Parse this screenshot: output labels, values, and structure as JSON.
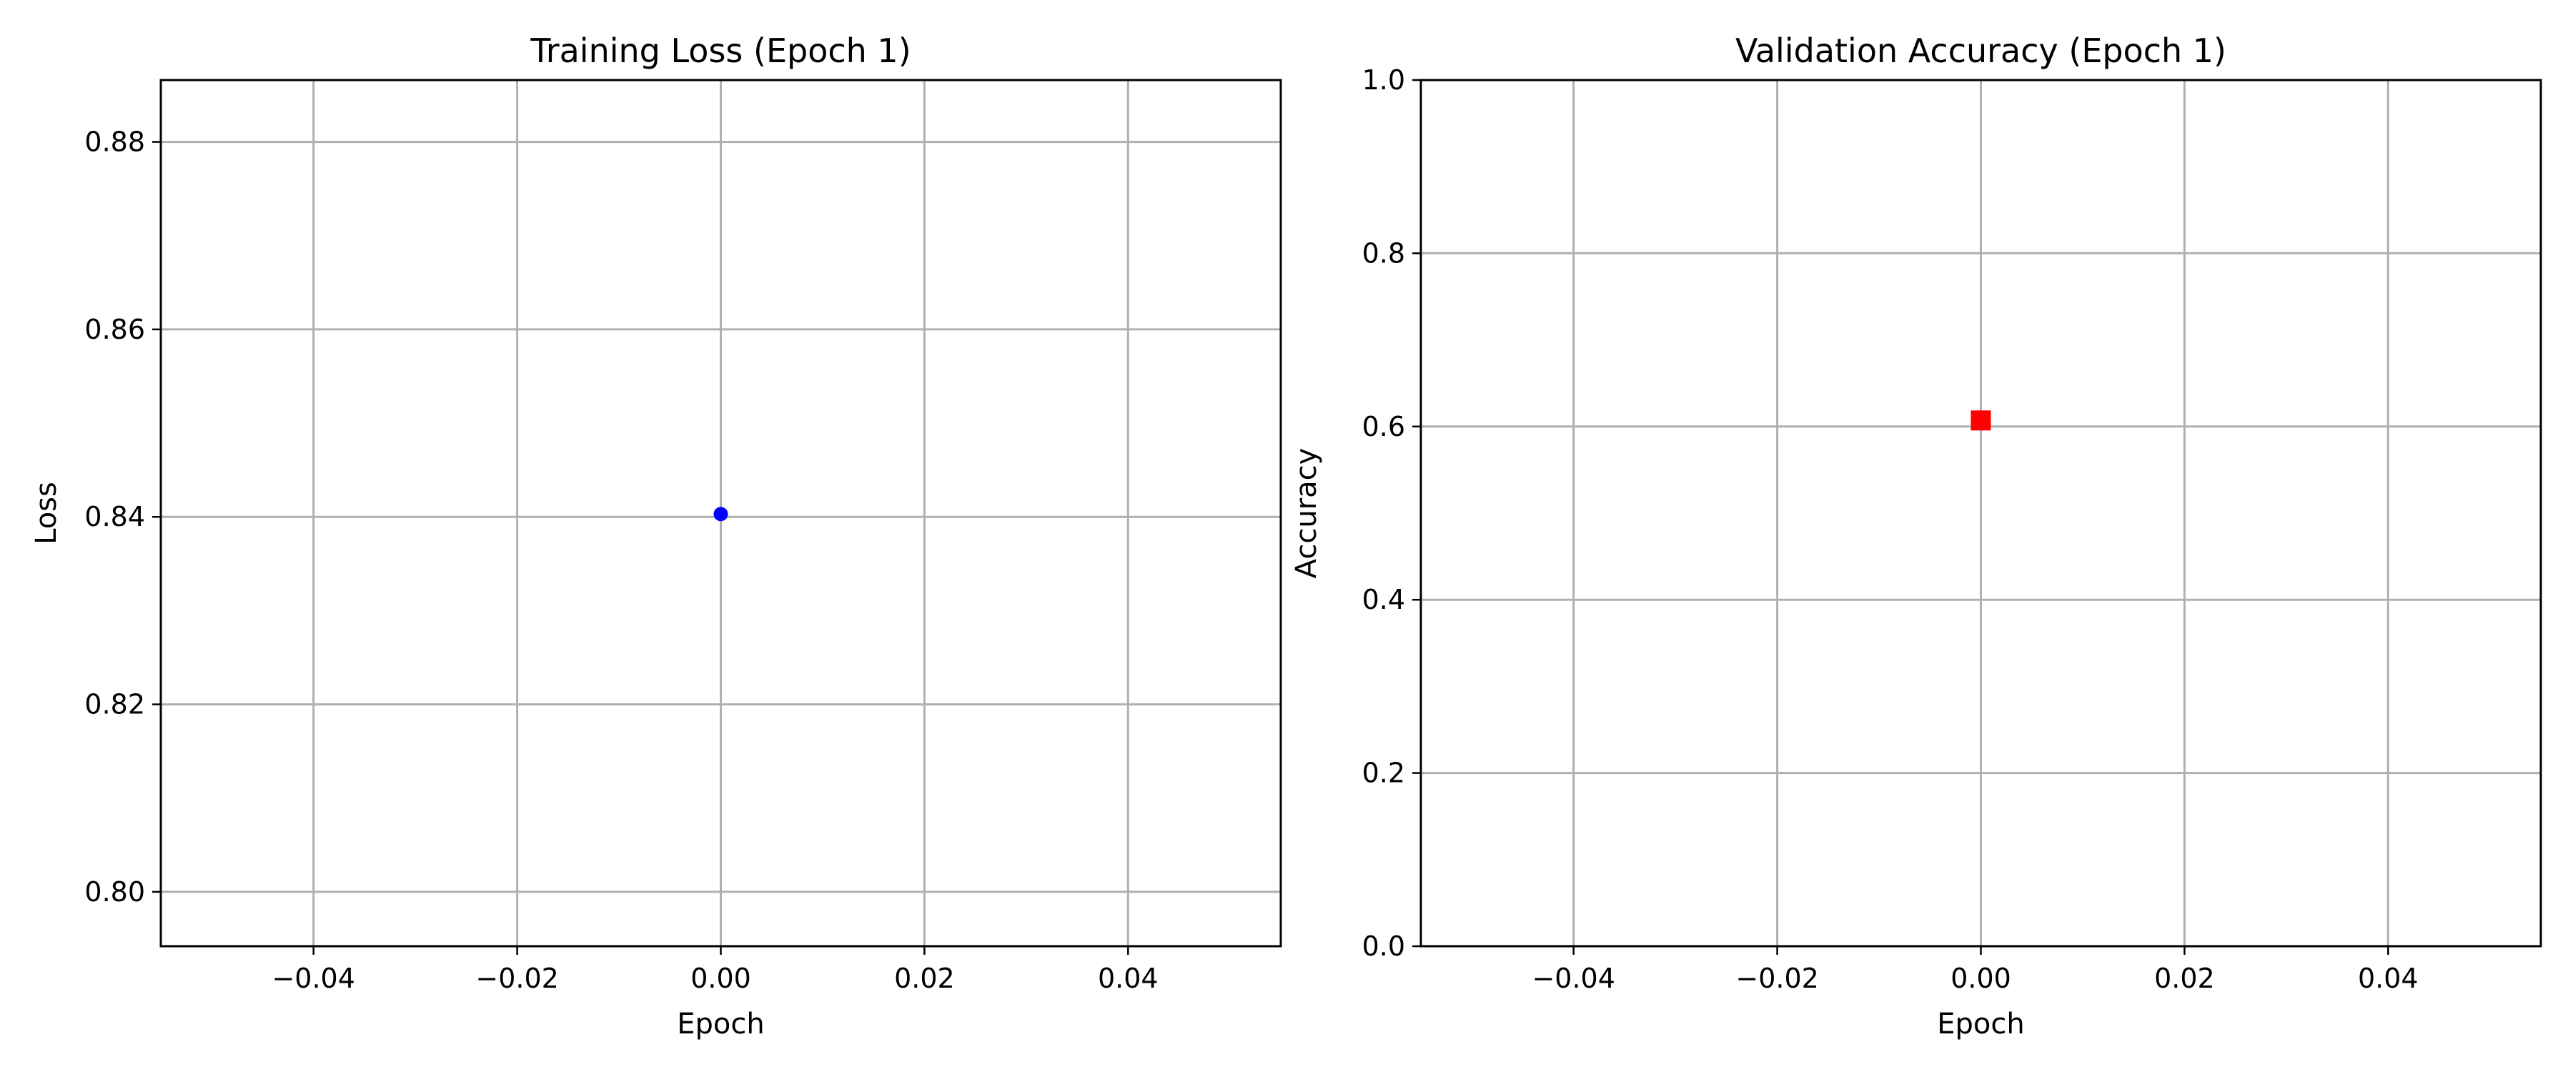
{
  "chart_data": [
    {
      "type": "scatter",
      "title": "Training Loss (Epoch 1)",
      "xlabel": "Epoch",
      "ylabel": "Loss",
      "xlim": [
        -0.055,
        0.055
      ],
      "ylim": [
        0.7942,
        0.8866
      ],
      "xticks": [
        -0.04,
        -0.02,
        0.0,
        0.02,
        0.04
      ],
      "xtick_labels": [
        "−0.04",
        "−0.02",
        "0.00",
        "0.02",
        "0.04"
      ],
      "yticks": [
        0.8,
        0.82,
        0.84,
        0.86,
        0.88
      ],
      "ytick_labels": [
        "0.80",
        "0.82",
        "0.84",
        "0.86",
        "0.88"
      ],
      "grid": true,
      "marker": "circle",
      "color": "#0000ff",
      "points": [
        {
          "x": 0.0,
          "y": 0.8403
        }
      ]
    },
    {
      "type": "scatter",
      "title": "Validation Accuracy (Epoch 1)",
      "xlabel": "Epoch",
      "ylabel": "Accuracy",
      "xlim": [
        -0.055,
        0.055
      ],
      "ylim": [
        0.0,
        1.0
      ],
      "xticks": [
        -0.04,
        -0.02,
        0.0,
        0.02,
        0.04
      ],
      "xtick_labels": [
        "−0.04",
        "−0.02",
        "0.00",
        "0.02",
        "0.04"
      ],
      "yticks": [
        0.0,
        0.2,
        0.4,
        0.6,
        0.8,
        1.0
      ],
      "ytick_labels": [
        "0.0",
        "0.2",
        "0.4",
        "0.6",
        "0.8",
        "1.0"
      ],
      "grid": true,
      "marker": "square",
      "color": "#ff0000",
      "points": [
        {
          "x": 0.0,
          "y": 0.607
        }
      ]
    }
  ]
}
